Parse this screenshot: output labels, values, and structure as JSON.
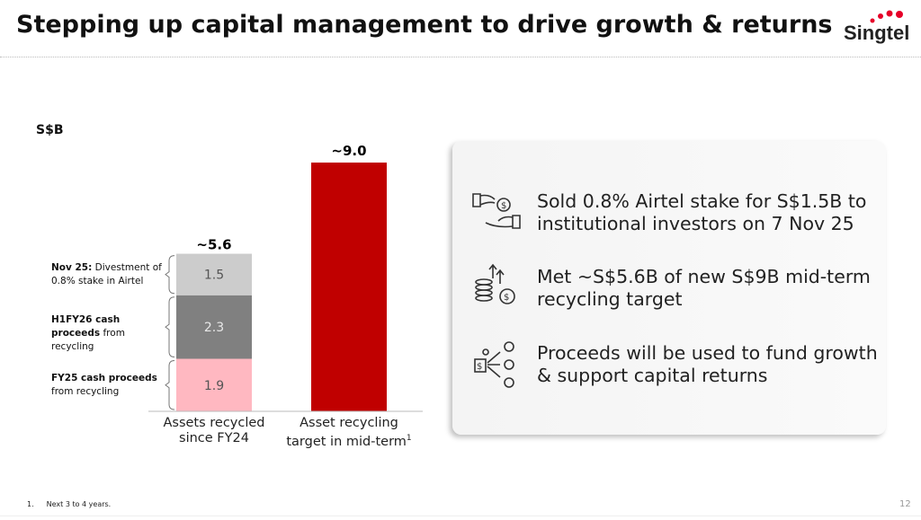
{
  "header": {
    "title": "Stepping up capital management to drive growth & returns",
    "logo": "Singtel"
  },
  "chart_data": {
    "type": "stacked-bar",
    "unit": "S$B",
    "categories": [
      "Assets recycled since FY24",
      "Asset recycling target in mid-term"
    ],
    "category_notes": [
      null,
      "1"
    ],
    "series": [
      {
        "name": "FY25 cash proceeds",
        "description": "from recycling",
        "color": "#ffb8c1",
        "values": [
          1.9,
          null
        ]
      },
      {
        "name": "H1FY26 cash proceeds",
        "description": "from recycling",
        "color": "#808080",
        "values": [
          2.3,
          null
        ]
      },
      {
        "name": "Nov 25:",
        "description": "Divestment of 0.8% stake in Airtel",
        "color": "#cccccc",
        "values": [
          1.5,
          null
        ]
      },
      {
        "color": "#c00000",
        "values": [
          null,
          9.0
        ]
      }
    ],
    "totals": [
      5.6,
      9.0
    ],
    "total_labels": [
      "~5.6",
      "~9.0"
    ]
  },
  "highlights": [
    {
      "text": "Sold 0.8% Airtel stake for S$1.5B to institutional investors on 7 Nov 25"
    },
    {
      "text": "Met ~S$5.6B of new S$9B mid-term recycling target"
    },
    {
      "text": "Proceeds will be used to fund growth & support capital returns"
    }
  ],
  "footnote": {
    "number": "1.",
    "text": "Next 3 to 4 years."
  },
  "page_number": "12"
}
